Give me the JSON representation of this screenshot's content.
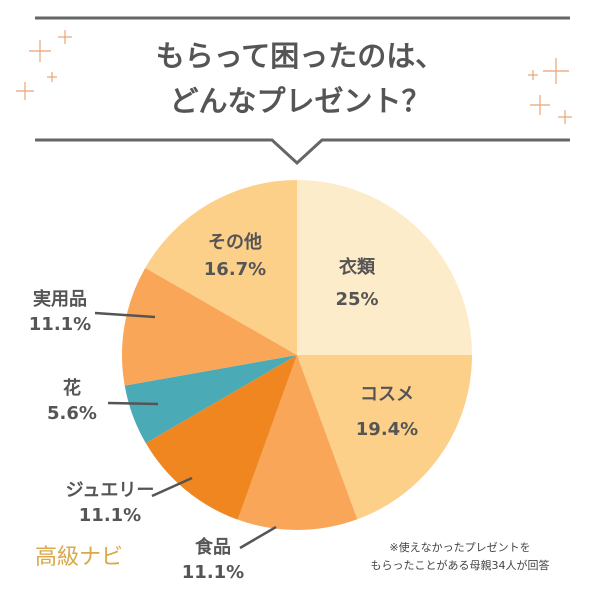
{
  "title": [
    "もらって困ったのは、",
    "どんなプレゼント？"
  ],
  "chart_data": {
    "type": "pie",
    "categories": [
      "衣類",
      "コスメ",
      "食品",
      "ジュエリー",
      "花",
      "実用品",
      "その他"
    ],
    "values": [
      25,
      19.4,
      11.1,
      11.1,
      5.6,
      11.1,
      16.7
    ],
    "value_labels": [
      "25%",
      "19.4%",
      "11.1%",
      "11.1%",
      "5.6%",
      "11.1%",
      "16.7%"
    ],
    "colors": [
      "#fdecc9",
      "#fdd08a",
      "#f9a659",
      "#ef861f",
      "#4aaab6",
      "#f9a659",
      "#fdd08a"
    ]
  },
  "footnote": [
    "※使えなかったプレゼントを",
    "もらったことがある母親34人が回答"
  ],
  "brand": "高級ナビ"
}
